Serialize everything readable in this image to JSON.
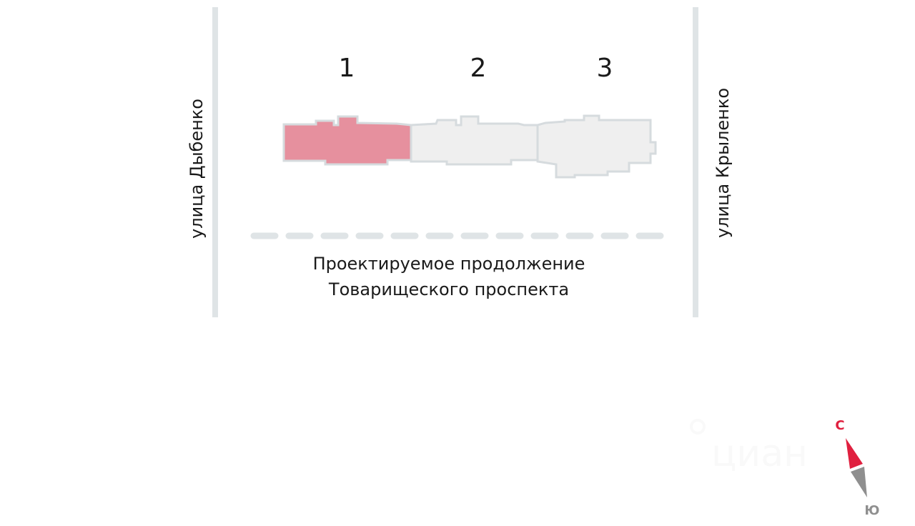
{
  "streets": {
    "left": "улица Дыбенко",
    "right": "улица Крыленко",
    "bottom_line1": "Проектируемое продолжение",
    "bottom_line2": "Товарищеского проспекта"
  },
  "buildings": [
    {
      "label": "1",
      "selected": true
    },
    {
      "label": "2",
      "selected": false
    },
    {
      "label": "3",
      "selected": false
    }
  ],
  "compass": {
    "north": "С",
    "south": "Ю"
  },
  "watermark": "циан",
  "colors": {
    "selected_fill": "#e6909e",
    "building_fill": "#efefef",
    "outline": "#d6dbde",
    "road": "#dfe4e6",
    "north": "#e0203f",
    "south": "#8f8f8f"
  }
}
